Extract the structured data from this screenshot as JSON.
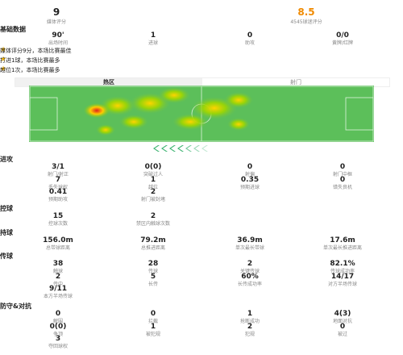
{
  "ratings": [
    {
      "value": "9",
      "label": "媒体评分"
    },
    {
      "value": "8.5",
      "label": "4545球迷评分"
    }
  ],
  "basic": {
    "title": "基础数据",
    "items": [
      {
        "value": "90'",
        "label": "出场时间"
      },
      {
        "value": "1",
        "label": "进球"
      },
      {
        "value": "0",
        "label": "助攻"
      },
      {
        "value": "0/0",
        "label": "黄牌/红牌"
      }
    ]
  },
  "highlights": [
    "媒体评分9分，本场比赛最佳",
    "打进1球，本场比赛最多",
    "越位1次，本场比赛最多"
  ],
  "tabs": [
    "热区",
    "射门"
  ],
  "sections": [
    {
      "title": "进攻",
      "items": [
        {
          "value": "3/1",
          "label": "射门/射正"
        },
        {
          "value": "0(0)",
          "label": "突破过人"
        },
        {
          "value": "0",
          "label": "射偏"
        },
        {
          "value": "0",
          "label": "射门中框"
        },
        {
          "value": "7",
          "label": "丢失球权"
        },
        {
          "value": "1",
          "label": "越位"
        },
        {
          "value": "0.35",
          "label": "预期进球"
        },
        {
          "value": "0",
          "label": "错失良机"
        },
        {
          "value": "0.41",
          "label": "预期助攻"
        },
        {
          "value": "2",
          "label": "射门被封堵"
        }
      ]
    },
    {
      "title": "控球",
      "items": [
        {
          "value": "15",
          "label": "控球次数"
        },
        {
          "value": "2",
          "label": "禁区内触球次数"
        }
      ]
    },
    {
      "title": "持球",
      "items": [
        {
          "value": "156.0m",
          "label": "总带球距离"
        },
        {
          "value": "79.2m",
          "label": "总推进距离"
        },
        {
          "value": "36.9m",
          "label": "单次最长带球"
        },
        {
          "value": "17.6m",
          "label": "单次最长推进距离"
        }
      ]
    },
    {
      "title": "传球",
      "items": [
        {
          "value": "38",
          "label": "触球"
        },
        {
          "value": "28",
          "label": "传球"
        },
        {
          "value": "2",
          "label": "关键传球"
        },
        {
          "value": "82.1%",
          "label": "传球成功率"
        },
        {
          "value": "2",
          "label": "传中"
        },
        {
          "value": "5",
          "label": "长传"
        },
        {
          "value": "60%",
          "label": "长传成功率"
        },
        {
          "value": "14/17",
          "label": "对方半场传球"
        },
        {
          "value": "9/11",
          "label": "本方半场传球"
        }
      ]
    },
    {
      "title": "防守&对抗",
      "items": [
        {
          "value": "0",
          "label": "解围"
        },
        {
          "value": "0",
          "label": "拦截"
        },
        {
          "value": "1",
          "label": "抢断成功"
        },
        {
          "value": "4(3)",
          "label": "地面对抗"
        },
        {
          "value": "0(0)",
          "label": "争顶"
        },
        {
          "value": "1",
          "label": "被犯规"
        },
        {
          "value": "2",
          "label": "犯规"
        },
        {
          "value": "0",
          "label": "被过"
        },
        {
          "value": "3",
          "label": "夺回球权"
        }
      ]
    }
  ]
}
